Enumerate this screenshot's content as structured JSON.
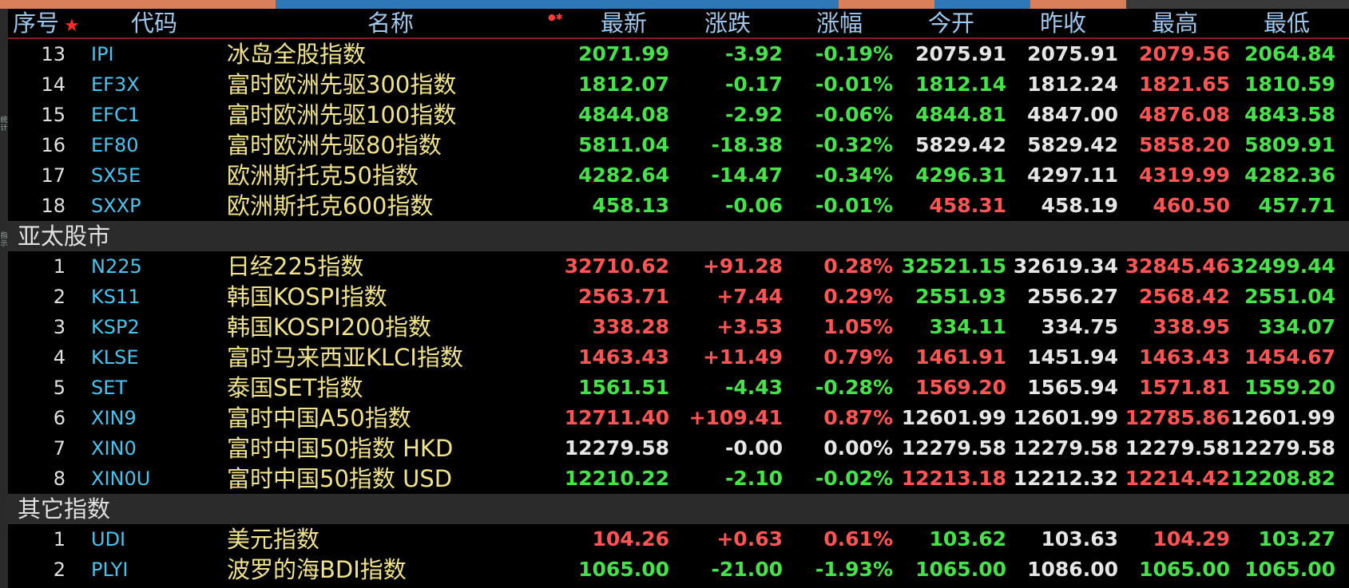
{
  "colors": {
    "up": "#ff5454",
    "down": "#46e24a",
    "flat": "#e6e6e6"
  },
  "left_tabs": [
    "统计",
    "指示"
  ],
  "header": {
    "seq": "序号",
    "code": "代码",
    "name": "名称",
    "last": "最新",
    "change": "涨跌",
    "pct": "涨幅",
    "open": "今开",
    "prev": "昨收",
    "high": "最高",
    "low": "最低"
  },
  "sections": [
    {
      "title": "",
      "rows": [
        {
          "idx": "13",
          "code": "IPI",
          "name": "冰岛全股指数",
          "last": "2071.99",
          "change": "-3.92",
          "pct": "-0.19%",
          "open": "2075.91",
          "prev": "2075.91",
          "high": "2079.56",
          "low": "2064.84",
          "c": [
            "g",
            "g",
            "g",
            "w",
            "w",
            "red",
            "g"
          ]
        },
        {
          "idx": "14",
          "code": "EF3X",
          "name": "富时欧洲先驱300指数",
          "last": "1812.07",
          "change": "-0.17",
          "pct": "-0.01%",
          "open": "1812.14",
          "prev": "1812.24",
          "high": "1821.65",
          "low": "1810.59",
          "c": [
            "g",
            "g",
            "g",
            "g",
            "w",
            "red",
            "g"
          ]
        },
        {
          "idx": "15",
          "code": "EFC1",
          "name": "富时欧洲先驱100指数",
          "last": "4844.08",
          "change": "-2.92",
          "pct": "-0.06%",
          "open": "4844.81",
          "prev": "4847.00",
          "high": "4876.08",
          "low": "4843.58",
          "c": [
            "g",
            "g",
            "g",
            "g",
            "w",
            "red",
            "g"
          ]
        },
        {
          "idx": "16",
          "code": "EF80",
          "name": "富时欧洲先驱80指数",
          "last": "5811.04",
          "change": "-18.38",
          "pct": "-0.32%",
          "open": "5829.42",
          "prev": "5829.42",
          "high": "5858.20",
          "low": "5809.91",
          "c": [
            "g",
            "g",
            "g",
            "w",
            "w",
            "red",
            "g"
          ]
        },
        {
          "idx": "17",
          "code": "SX5E",
          "name": "欧洲斯托克50指数",
          "last": "4282.64",
          "change": "-14.47",
          "pct": "-0.34%",
          "open": "4296.31",
          "prev": "4297.11",
          "high": "4319.99",
          "low": "4282.36",
          "c": [
            "g",
            "g",
            "g",
            "g",
            "w",
            "red",
            "g"
          ]
        },
        {
          "idx": "18",
          "code": "SXXP",
          "name": "欧洲斯托克600指数",
          "last": "458.13",
          "change": "-0.06",
          "pct": "-0.01%",
          "open": "458.31",
          "prev": "458.19",
          "high": "460.50",
          "low": "457.71",
          "c": [
            "g",
            "g",
            "g",
            "red",
            "w",
            "red",
            "g"
          ]
        }
      ]
    },
    {
      "title": "亚太股市",
      "rows": [
        {
          "idx": "1",
          "code": "N225",
          "name": "日经225指数",
          "last": "32710.62",
          "change": "+91.28",
          "pct": "0.28%",
          "open": "32521.15",
          "prev": "32619.34",
          "high": "32845.46",
          "low": "32499.44",
          "c": [
            "red",
            "red",
            "red",
            "g",
            "w",
            "red",
            "g"
          ]
        },
        {
          "idx": "2",
          "code": "KS11",
          "name": "韩国KOSPI指数",
          "last": "2563.71",
          "change": "+7.44",
          "pct": "0.29%",
          "open": "2551.93",
          "prev": "2556.27",
          "high": "2568.42",
          "low": "2551.04",
          "c": [
            "red",
            "red",
            "red",
            "g",
            "w",
            "red",
            "g"
          ]
        },
        {
          "idx": "3",
          "code": "KSP2",
          "name": "韩国KOSPI200指数",
          "last": "338.28",
          "change": "+3.53",
          "pct": "1.05%",
          "open": "334.11",
          "prev": "334.75",
          "high": "338.95",
          "low": "334.07",
          "c": [
            "red",
            "red",
            "red",
            "g",
            "w",
            "red",
            "g"
          ]
        },
        {
          "idx": "4",
          "code": "KLSE",
          "name": "富时马来西亚KLCI指数",
          "last": "1463.43",
          "change": "+11.49",
          "pct": "0.79%",
          "open": "1461.91",
          "prev": "1451.94",
          "high": "1463.43",
          "low": "1454.67",
          "c": [
            "red",
            "red",
            "red",
            "red",
            "w",
            "red",
            "red"
          ]
        },
        {
          "idx": "5",
          "code": "SET",
          "name": "泰国SET指数",
          "last": "1561.51",
          "change": "-4.43",
          "pct": "-0.28%",
          "open": "1569.20",
          "prev": "1565.94",
          "high": "1571.81",
          "low": "1559.20",
          "c": [
            "g",
            "g",
            "g",
            "red",
            "w",
            "red",
            "g"
          ]
        },
        {
          "idx": "6",
          "code": "XIN9",
          "name": "富时中国A50指数",
          "last": "12711.40",
          "change": "+109.41",
          "pct": "0.87%",
          "open": "12601.99",
          "prev": "12601.99",
          "high": "12785.86",
          "low": "12601.99",
          "c": [
            "red",
            "red",
            "red",
            "w",
            "w",
            "red",
            "w"
          ]
        },
        {
          "idx": "7",
          "code": "XIN0",
          "name": "富时中国50指数 HKD",
          "last": "12279.58",
          "change": "-0.00",
          "pct": "0.00%",
          "open": "12279.58",
          "prev": "12279.58",
          "high": "12279.58",
          "low": "12279.58",
          "c": [
            "w",
            "w",
            "w",
            "w",
            "w",
            "w",
            "w"
          ]
        },
        {
          "idx": "8",
          "code": "XIN0U",
          "name": "富时中国50指数 USD",
          "last": "12210.22",
          "change": "-2.10",
          "pct": "-0.02%",
          "open": "12213.18",
          "prev": "12212.32",
          "high": "12214.42",
          "low": "12208.82",
          "c": [
            "g",
            "g",
            "g",
            "red",
            "w",
            "red",
            "g"
          ]
        }
      ]
    },
    {
      "title": "其它指数",
      "rows": [
        {
          "idx": "1",
          "code": "UDI",
          "name": "美元指数",
          "last": "104.26",
          "change": "+0.63",
          "pct": "0.61%",
          "open": "103.62",
          "prev": "103.63",
          "high": "104.29",
          "low": "103.27",
          "c": [
            "red",
            "red",
            "red",
            "g",
            "w",
            "red",
            "g"
          ]
        },
        {
          "idx": "2",
          "code": "PLYI",
          "name": "波罗的海BDI指数",
          "last": "1065.00",
          "change": "-21.00",
          "pct": "-1.93%",
          "open": "1065.00",
          "prev": "1086.00",
          "high": "1065.00",
          "low": "1065.00",
          "c": [
            "g",
            "g",
            "g",
            "g",
            "w",
            "g",
            "g"
          ]
        }
      ]
    }
  ]
}
